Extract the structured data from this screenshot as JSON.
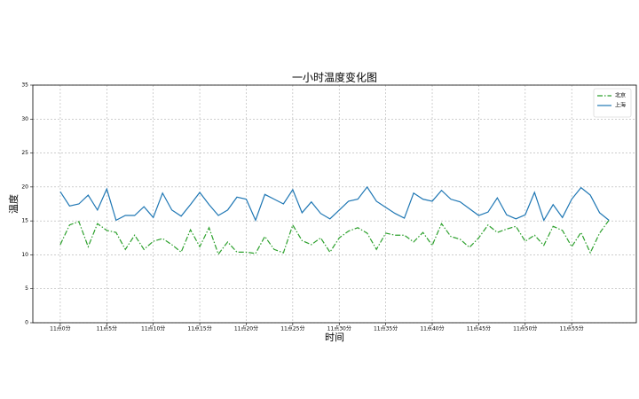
{
  "chart_data": {
    "type": "line",
    "title": "一小时温度变化图",
    "xlabel": "时间",
    "ylabel": "温度",
    "categories": [
      "11点0分",
      null,
      null,
      null,
      null,
      "11点5分",
      null,
      null,
      null,
      null,
      "11点10分",
      null,
      null,
      null,
      null,
      "11点15分",
      null,
      null,
      null,
      null,
      "11点20分",
      null,
      null,
      null,
      null,
      "11点25分",
      null,
      null,
      null,
      null,
      "11点30分",
      null,
      null,
      null,
      null,
      "11点35分",
      null,
      null,
      null,
      null,
      "11点40分",
      null,
      null,
      null,
      null,
      "11点45分",
      null,
      null,
      null,
      null,
      "11点50分",
      null,
      null,
      null,
      null,
      "11点55分",
      null,
      null,
      null,
      null
    ],
    "series": [
      {
        "name": "北京",
        "color": "#2ca02c",
        "dash": "dashdot",
        "values": [
          11.5,
          14.4,
          14.9,
          11.2,
          14.6,
          13.6,
          13.3,
          10.8,
          12.9,
          10.8,
          12.0,
          12.4,
          11.5,
          10.4,
          13.7,
          11.2,
          14.0,
          10.1,
          11.9,
          10.4,
          10.4,
          10.2,
          12.7,
          10.8,
          10.3,
          14.4,
          12.1,
          11.5,
          12.5,
          10.4,
          12.5,
          13.5,
          14.0,
          13.2,
          10.8,
          13.2,
          12.9,
          12.9,
          11.9,
          13.3,
          11.4,
          14.6,
          12.7,
          12.3,
          11.1,
          12.5,
          14.4,
          13.3,
          13.8,
          14.2,
          12.0,
          12.9,
          11.4,
          14.2,
          13.6,
          11.2,
          13.3,
          10.3,
          13.2,
          15.1
        ]
      },
      {
        "name": "上海",
        "color": "#1f77b4",
        "dash": "solid",
        "values": [
          19.3,
          17.2,
          17.5,
          18.8,
          16.6,
          19.7,
          15.1,
          15.8,
          15.8,
          17.1,
          15.5,
          19.1,
          16.6,
          15.7,
          17.4,
          19.2,
          17.4,
          15.8,
          16.6,
          18.5,
          18.2,
          15.1,
          18.9,
          18.2,
          17.5,
          19.6,
          16.2,
          17.8,
          16.1,
          15.3,
          16.6,
          17.9,
          18.2,
          20.0,
          17.9,
          17.0,
          16.1,
          15.4,
          19.1,
          18.2,
          17.9,
          19.5,
          18.2,
          17.8,
          16.8,
          15.8,
          16.3,
          18.4,
          15.9,
          15.3,
          15.9,
          19.2,
          15.1,
          17.4,
          15.5,
          18.2,
          19.9,
          18.8,
          16.2,
          15.1
        ]
      }
    ],
    "ylim": [
      0,
      35
    ],
    "yticks": [
      0,
      5,
      10,
      15,
      20,
      25,
      30,
      35
    ],
    "grid": true,
    "legend": "upper right"
  }
}
